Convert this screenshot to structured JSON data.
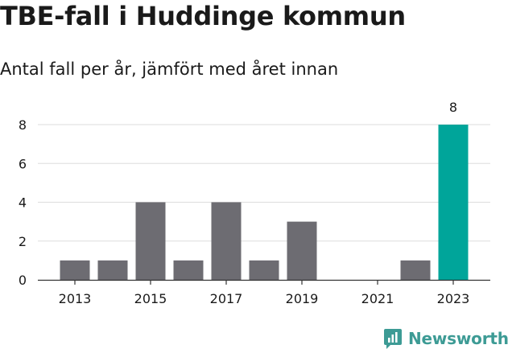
{
  "title": "TBE-fall i Huddinge kommun",
  "subtitle": "Antal fall per år, jämfört med året innan",
  "chart_data": {
    "type": "bar",
    "title": "TBE-fall i Huddinge kommun",
    "subtitle": "Antal fall per år, jämfört med året innan",
    "x": [
      2013,
      2014,
      2015,
      2016,
      2017,
      2018,
      2019,
      2020,
      2021,
      2022,
      2023
    ],
    "values": [
      1,
      1,
      4,
      1,
      4,
      1,
      3,
      0,
      0,
      1,
      8
    ],
    "highlight_index": 10,
    "data_labels": [
      {
        "index": 10,
        "text": "8"
      }
    ],
    "x_ticks": [
      "2013",
      "2015",
      "2017",
      "2019",
      "2021",
      "2023"
    ],
    "y_ticks": [
      "0",
      "2",
      "4",
      "6",
      "8"
    ],
    "ylim": [
      0,
      8
    ],
    "grid": true,
    "colors": {
      "bar": "#6d6c72",
      "highlight": "#00a59a",
      "grid": "#dddddd",
      "axis": "#333333"
    }
  },
  "brand": {
    "name": "Newsworthy",
    "icon": "bar-chart-logo-icon",
    "color": "#3d9b95"
  }
}
